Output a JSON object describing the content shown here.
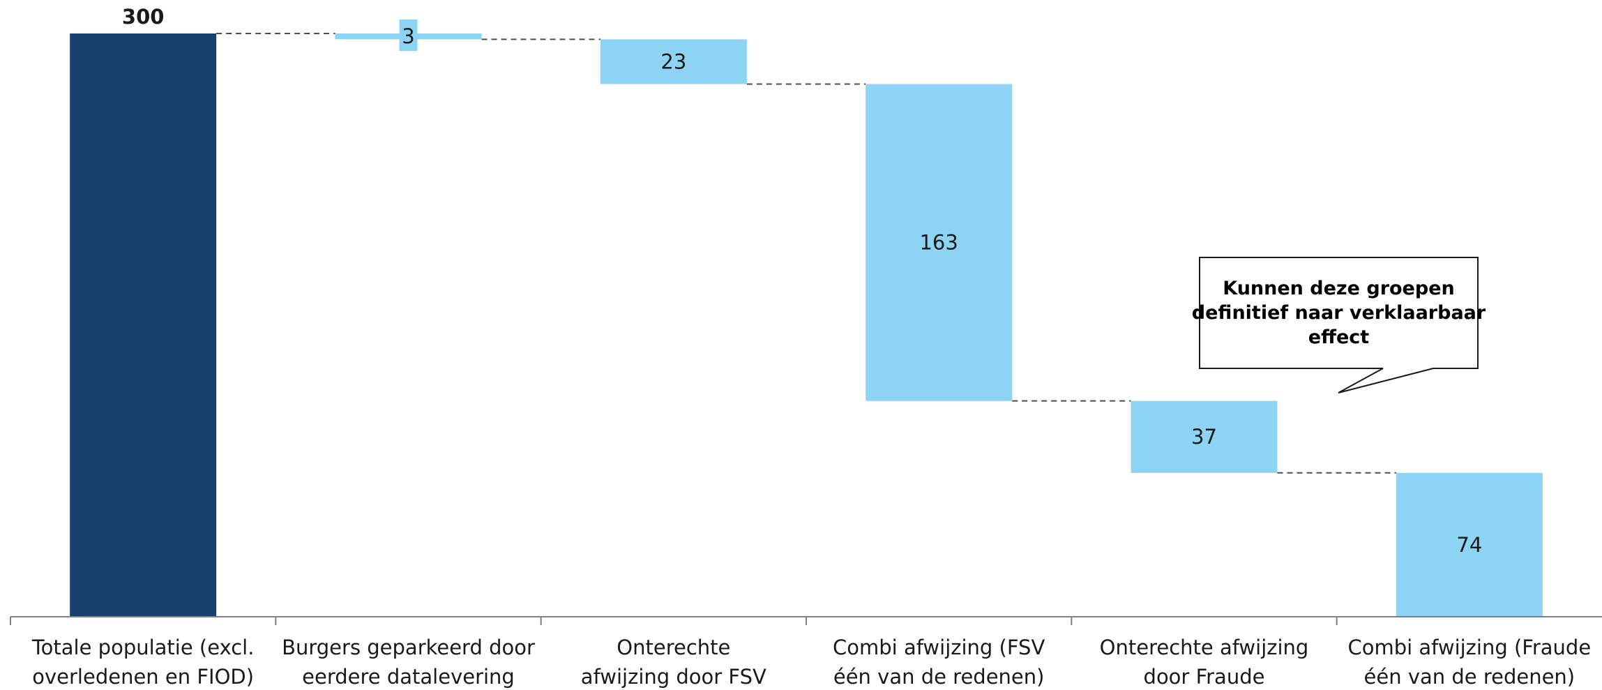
{
  "chart_data": {
    "type": "bar",
    "subtype": "waterfall",
    "categories": [
      [
        "Totale populatie (excl.",
        "overledenen en FIOD)"
      ],
      [
        "Burgers geparkeerd door",
        "eerdere datalevering"
      ],
      [
        "Onterechte",
        "afwijzing door FSV"
      ],
      [
        "Combi afwijzing (FSV",
        "één van de redenen)"
      ],
      [
        "Onterechte afwijzing",
        "door Fraude"
      ],
      [
        "Combi afwijzing (Fraude",
        "één van de redenen)"
      ]
    ],
    "values": [
      300,
      3,
      23,
      163,
      37,
      74
    ],
    "value_labels": [
      "300",
      "3",
      "23",
      "163",
      "37",
      "74"
    ],
    "kinds": [
      "total",
      "step",
      "step",
      "step",
      "step",
      "step"
    ],
    "ylim": [
      0,
      300
    ],
    "grid": false,
    "connectors": "dashed",
    "colors": {
      "total": "#183f6e",
      "step": "#8dd3f3",
      "axis": "#808080",
      "connector": "#4d4d4d"
    },
    "callout": {
      "lines": [
        "Kunnen deze groepen",
        "definitief naar verklaarbaar",
        "effect"
      ]
    }
  }
}
